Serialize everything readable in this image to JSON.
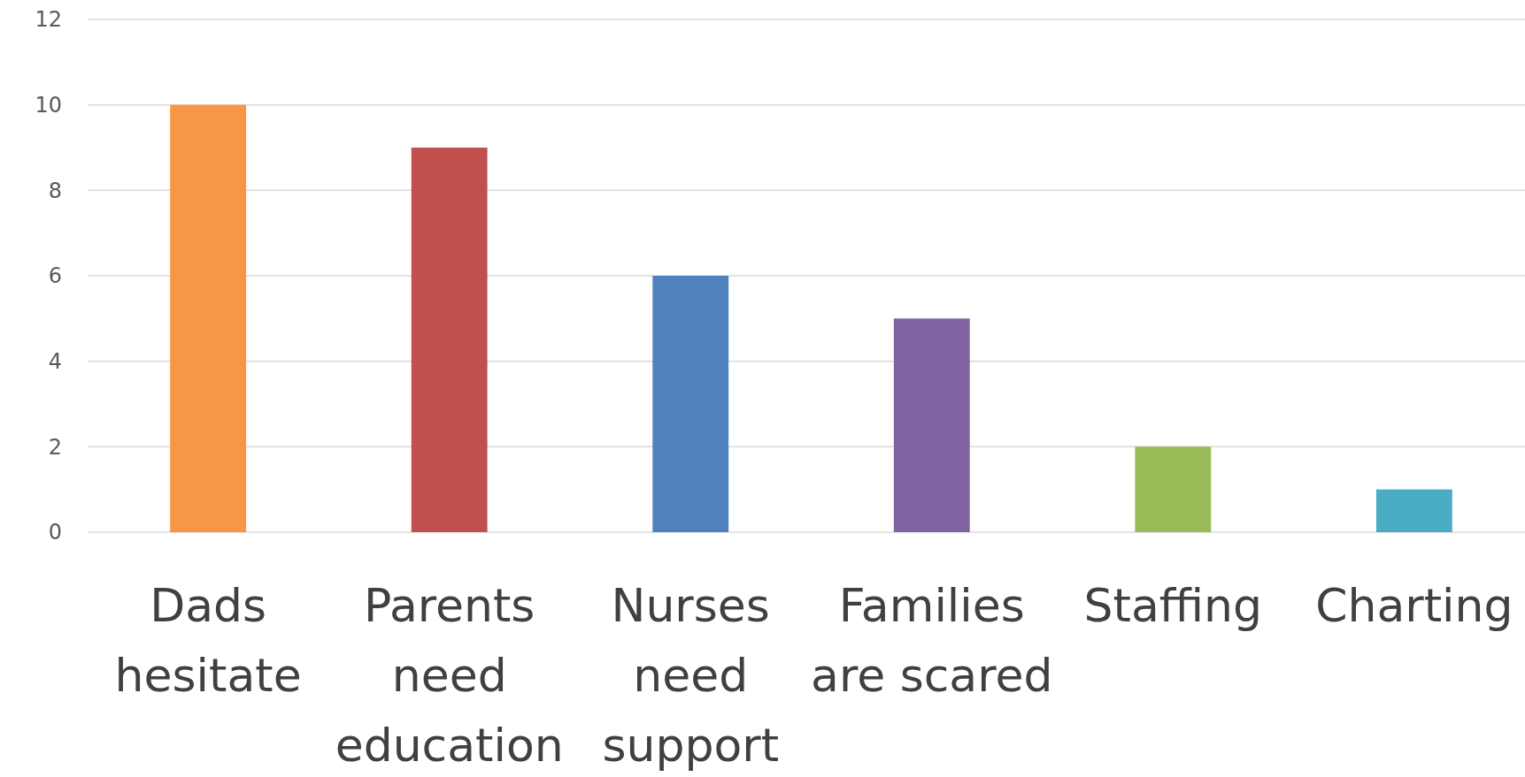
{
  "chart_data": {
    "type": "bar",
    "categories": [
      "Dads hesitate",
      "Parents need education",
      "Nurses need support",
      "Families are scared",
      "Staffing",
      "Charting"
    ],
    "values": [
      10,
      9,
      6,
      5,
      2,
      1
    ],
    "colors": [
      "#f79646",
      "#c0504d",
      "#4f81bd",
      "#8064a2",
      "#9bbb59",
      "#4bacc6"
    ],
    "ylim": [
      0,
      12
    ],
    "yticks": [
      0,
      2,
      4,
      6,
      8,
      10,
      12
    ],
    "grid": "y"
  }
}
